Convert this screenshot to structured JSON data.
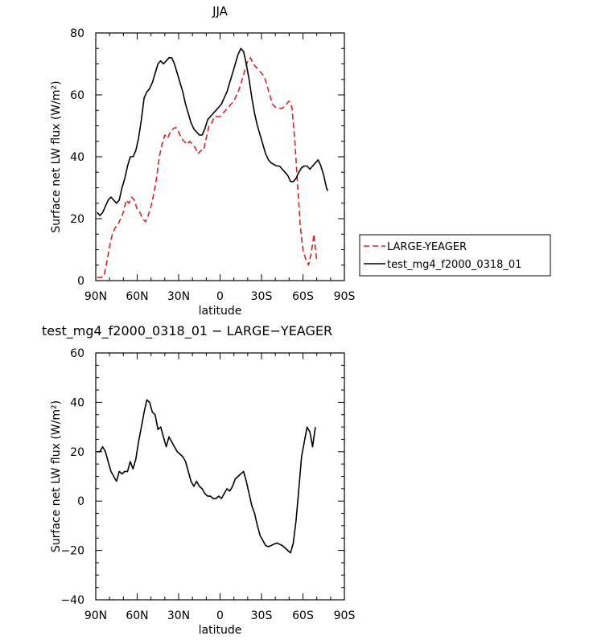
{
  "chart_data": [
    {
      "type": "line",
      "title": "JJA",
      "xlabel": "latitude",
      "ylabel": "Surface net LW flux (W/m²)",
      "xlim": [
        90,
        -90
      ],
      "ylim": [
        0,
        80
      ],
      "x_ticks": [
        90,
        60,
        30,
        0,
        -30,
        -60,
        -90
      ],
      "x_tick_labels": [
        "90N",
        "60N",
        "30N",
        "0",
        "30S",
        "60S",
        "90S"
      ],
      "y_ticks": [
        0,
        20,
        40,
        60,
        80
      ],
      "y_tick_labels": [
        "0",
        "20",
        "40",
        "60",
        "80"
      ],
      "legend_position": "right",
      "series": [
        {
          "name": "LARGE-YEAGER",
          "color": "#e02020",
          "style": "dashed",
          "points": [
            [
              89,
              1
            ],
            [
              86,
              1
            ],
            [
              84,
              1.5
            ],
            [
              82,
              6
            ],
            [
              80,
              11
            ],
            [
              78,
              15
            ],
            [
              76,
              17
            ],
            [
              74,
              18
            ],
            [
              72,
              20
            ],
            [
              70,
              22
            ],
            [
              68,
              26
            ],
            [
              66,
              25
            ],
            [
              64,
              27
            ],
            [
              62,
              26
            ],
            [
              60,
              23
            ],
            [
              58,
              22
            ],
            [
              56,
              20
            ],
            [
              54,
              19
            ],
            [
              52,
              21
            ],
            [
              50,
              24
            ],
            [
              48,
              28
            ],
            [
              46,
              33
            ],
            [
              44,
              40
            ],
            [
              42,
              44
            ],
            [
              40,
              47
            ],
            [
              38,
              46
            ],
            [
              36,
              48
            ],
            [
              34,
              49
            ],
            [
              32,
              49.5
            ],
            [
              30,
              48
            ],
            [
              28,
              46
            ],
            [
              26,
              45
            ],
            [
              24,
              44
            ],
            [
              22,
              45
            ],
            [
              20,
              44
            ],
            [
              18,
              43
            ],
            [
              16,
              41
            ],
            [
              14,
              42
            ],
            [
              12,
              42
            ],
            [
              10,
              46
            ],
            [
              8,
              50
            ],
            [
              6,
              51
            ],
            [
              4,
              53
            ],
            [
              2,
              53
            ],
            [
              0,
              53
            ],
            [
              -2,
              54
            ],
            [
              -4,
              55
            ],
            [
              -6,
              56
            ],
            [
              -8,
              57
            ],
            [
              -10,
              58
            ],
            [
              -12,
              60
            ],
            [
              -14,
              62
            ],
            [
              -16,
              65
            ],
            [
              -18,
              68
            ],
            [
              -20,
              71
            ],
            [
              -22,
              72
            ],
            [
              -24,
              70
            ],
            [
              -26,
              69
            ],
            [
              -28,
              68
            ],
            [
              -30,
              67
            ],
            [
              -32,
              66
            ],
            [
              -34,
              63
            ],
            [
              -36,
              60
            ],
            [
              -38,
              57
            ],
            [
              -40,
              56
            ],
            [
              -42,
              56
            ],
            [
              -44,
              55.5
            ],
            [
              -46,
              56
            ],
            [
              -48,
              57
            ],
            [
              -50,
              58
            ],
            [
              -52,
              56
            ],
            [
              -54,
              46
            ],
            [
              -56,
              32
            ],
            [
              -58,
              18
            ],
            [
              -60,
              10
            ],
            [
              -62,
              7
            ],
            [
              -64,
              5
            ],
            [
              -66,
              9
            ],
            [
              -68,
              15
            ],
            [
              -70,
              6
            ]
          ]
        },
        {
          "name": "test_mg4_f2000_0318_01",
          "color": "#000000",
          "style": "solid",
          "points": [
            [
              89,
              22
            ],
            [
              87,
              21
            ],
            [
              85,
              22
            ],
            [
              83,
              24
            ],
            [
              81,
              26
            ],
            [
              79,
              27
            ],
            [
              77,
              26
            ],
            [
              75,
              25
            ],
            [
              73,
              26
            ],
            [
              71,
              30
            ],
            [
              69,
              33
            ],
            [
              67,
              37
            ],
            [
              65,
              40
            ],
            [
              63,
              40
            ],
            [
              61,
              42
            ],
            [
              59,
              46
            ],
            [
              57,
              52
            ],
            [
              55,
              59
            ],
            [
              53,
              61
            ],
            [
              51,
              62
            ],
            [
              49,
              64
            ],
            [
              47,
              67
            ],
            [
              45,
              70
            ],
            [
              43,
              71
            ],
            [
              41,
              70
            ],
            [
              39,
              71
            ],
            [
              37,
              72
            ],
            [
              35,
              72
            ],
            [
              33,
              70
            ],
            [
              31,
              67
            ],
            [
              29,
              64
            ],
            [
              27,
              61
            ],
            [
              25,
              57
            ],
            [
              23,
              54
            ],
            [
              21,
              51
            ],
            [
              19,
              49
            ],
            [
              17,
              48
            ],
            [
              15,
              47
            ],
            [
              13,
              47
            ],
            [
              11,
              49
            ],
            [
              9,
              52
            ],
            [
              7,
              53
            ],
            [
              5,
              54
            ],
            [
              3,
              55
            ],
            [
              1,
              56
            ],
            [
              -1,
              57
            ],
            [
              -3,
              59
            ],
            [
              -5,
              61
            ],
            [
              -7,
              64
            ],
            [
              -9,
              67
            ],
            [
              -11,
              70
            ],
            [
              -13,
              73
            ],
            [
              -15,
              75
            ],
            [
              -17,
              74
            ],
            [
              -19,
              70
            ],
            [
              -21,
              65
            ],
            [
              -23,
              59
            ],
            [
              -25,
              54
            ],
            [
              -27,
              50
            ],
            [
              -29,
              47
            ],
            [
              -31,
              44
            ],
            [
              -33,
              41
            ],
            [
              -35,
              39
            ],
            [
              -37,
              38
            ],
            [
              -39,
              37.5
            ],
            [
              -41,
              37
            ],
            [
              -43,
              37
            ],
            [
              -45,
              36
            ],
            [
              -47,
              35
            ],
            [
              -49,
              34
            ],
            [
              -51,
              32
            ],
            [
              -53,
              32
            ],
            [
              -55,
              33
            ],
            [
              -57,
              35
            ],
            [
              -59,
              36.5
            ],
            [
              -61,
              37
            ],
            [
              -63,
              37
            ],
            [
              -65,
              36
            ],
            [
              -67,
              37
            ],
            [
              -69,
              38
            ],
            [
              -71,
              39
            ],
            [
              -73,
              37
            ],
            [
              -75,
              34
            ],
            [
              -77,
              30
            ],
            [
              -78,
              29
            ]
          ]
        }
      ]
    },
    {
      "type": "line",
      "title": "test_mg4_f2000_0318_01 − LARGE−YEAGER",
      "xlabel": "latitude",
      "ylabel": "Surface net LW flux (W/m²)",
      "xlim": [
        90,
        -90
      ],
      "ylim": [
        -40,
        60
      ],
      "x_ticks": [
        90,
        60,
        30,
        0,
        -30,
        -60,
        -90
      ],
      "x_tick_labels": [
        "90N",
        "60N",
        "30N",
        "0",
        "30S",
        "60S",
        "90S"
      ],
      "y_ticks": [
        -40,
        -20,
        0,
        20,
        40,
        60
      ],
      "y_tick_labels": [
        "−40",
        "−20",
        "0",
        "20",
        "40",
        "60"
      ],
      "series": [
        {
          "color": "#000000",
          "style": "solid",
          "points": [
            [
              89,
              20
            ],
            [
              87,
              20
            ],
            [
              85,
              22
            ],
            [
              83,
              20
            ],
            [
              81,
              16
            ],
            [
              79,
              12
            ],
            [
              77,
              10
            ],
            [
              75,
              8
            ],
            [
              73,
              12
            ],
            [
              71,
              11
            ],
            [
              69,
              12
            ],
            [
              67,
              12
            ],
            [
              65,
              16
            ],
            [
              63,
              13
            ],
            [
              61,
              17
            ],
            [
              59,
              24
            ],
            [
              57,
              30
            ],
            [
              55,
              36
            ],
            [
              53,
              41
            ],
            [
              51,
              40
            ],
            [
              49,
              36
            ],
            [
              47,
              35
            ],
            [
              45,
              29
            ],
            [
              43,
              30
            ],
            [
              41,
              26
            ],
            [
              39,
              22
            ],
            [
              37,
              26
            ],
            [
              35,
              24
            ],
            [
              33,
              22
            ],
            [
              31,
              20
            ],
            [
              29,
              19
            ],
            [
              27,
              18
            ],
            [
              25,
              16
            ],
            [
              23,
              12
            ],
            [
              21,
              8
            ],
            [
              19,
              6
            ],
            [
              17,
              8
            ],
            [
              15,
              6
            ],
            [
              13,
              5
            ],
            [
              11,
              3
            ],
            [
              9,
              2
            ],
            [
              7,
              2
            ],
            [
              5,
              1
            ],
            [
              3,
              1
            ],
            [
              1,
              2
            ],
            [
              -1,
              1
            ],
            [
              -3,
              3
            ],
            [
              -5,
              5
            ],
            [
              -7,
              4
            ],
            [
              -9,
              6
            ],
            [
              -11,
              9
            ],
            [
              -13,
              10
            ],
            [
              -15,
              11
            ],
            [
              -17,
              12
            ],
            [
              -19,
              8
            ],
            [
              -21,
              3
            ],
            [
              -23,
              -2
            ],
            [
              -25,
              -5
            ],
            [
              -27,
              -10
            ],
            [
              -29,
              -14
            ],
            [
              -31,
              -16
            ],
            [
              -33,
              -18
            ],
            [
              -35,
              -18.5
            ],
            [
              -37,
              -18
            ],
            [
              -39,
              -17.5
            ],
            [
              -41,
              -17
            ],
            [
              -43,
              -17.5
            ],
            [
              -45,
              -18
            ],
            [
              -47,
              -19
            ],
            [
              -49,
              -20
            ],
            [
              -51,
              -21
            ],
            [
              -53,
              -17
            ],
            [
              -55,
              -8
            ],
            [
              -57,
              5
            ],
            [
              -59,
              18
            ],
            [
              -61,
              24
            ],
            [
              -63,
              30
            ],
            [
              -65,
              28
            ],
            [
              -67,
              22
            ],
            [
              -69,
              30
            ]
          ]
        }
      ]
    }
  ]
}
